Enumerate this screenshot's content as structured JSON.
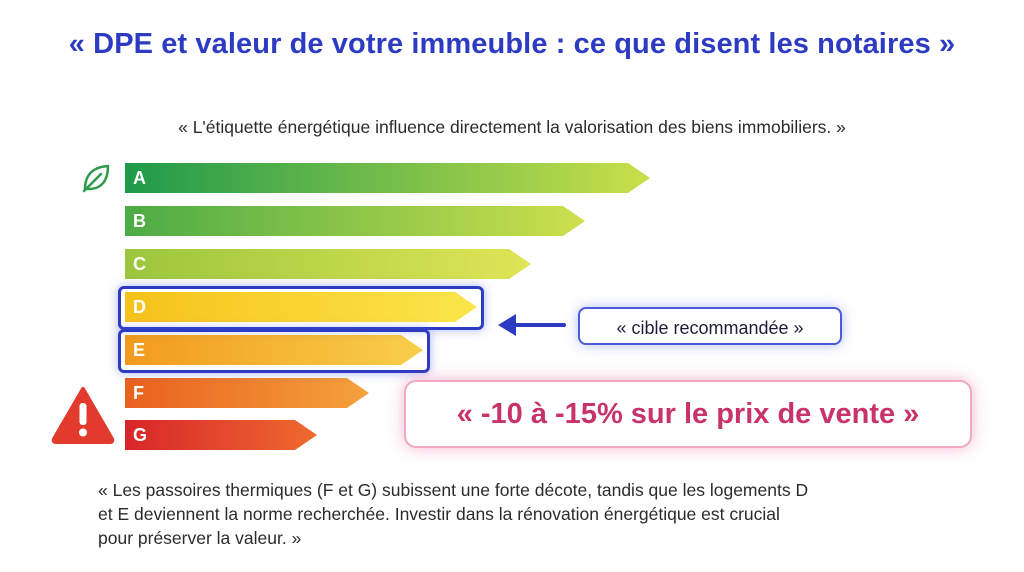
{
  "header": {
    "title": "« DPE et valeur de votre immeuble : ce que disent les notaires »",
    "subtitle": "« L'étiquette énergétique influence directement la valorisation des biens immobiliers. »"
  },
  "energy_scale": {
    "bars": [
      {
        "letter": "A",
        "color_start": "#1f9a4a",
        "color_end": "#c9e04a"
      },
      {
        "letter": "B",
        "color_start": "#4cab45",
        "color_end": "#cde04c"
      },
      {
        "letter": "C",
        "color_start": "#9cc63c",
        "color_end": "#dfe556"
      },
      {
        "letter": "D",
        "color_start": "#f6c21a",
        "color_end": "#fbe64a"
      },
      {
        "letter": "E",
        "color_start": "#f29a1e",
        "color_end": "#f8cf4a"
      },
      {
        "letter": "F",
        "color_start": "#e9601e",
        "color_end": "#f4a23c"
      },
      {
        "letter": "G",
        "color_start": "#d8262a",
        "color_end": "#ee6a2e"
      }
    ],
    "highlighted": [
      "D",
      "E"
    ],
    "best_icon": "leaf-icon",
    "worst_icon": "warning-icon"
  },
  "callouts": {
    "target_label": "« cible recommandée »",
    "price_impact": "« -10 à -15% sur le prix de vente »"
  },
  "footer": {
    "lines": [
      "« Les passoires thermiques (F et G) subissent une forte décote, tandis que les logements D",
      "et E deviennent la norme recherchée. Investir dans la rénovation énergétique est crucial",
      "pour préserver la valeur. »"
    ]
  },
  "colors": {
    "title": "#2c3bc2",
    "highlight_border": "#2c3bc2",
    "price_text": "#c8336a",
    "warning": "#e23b2e",
    "leaf": "#2f9a4c"
  }
}
